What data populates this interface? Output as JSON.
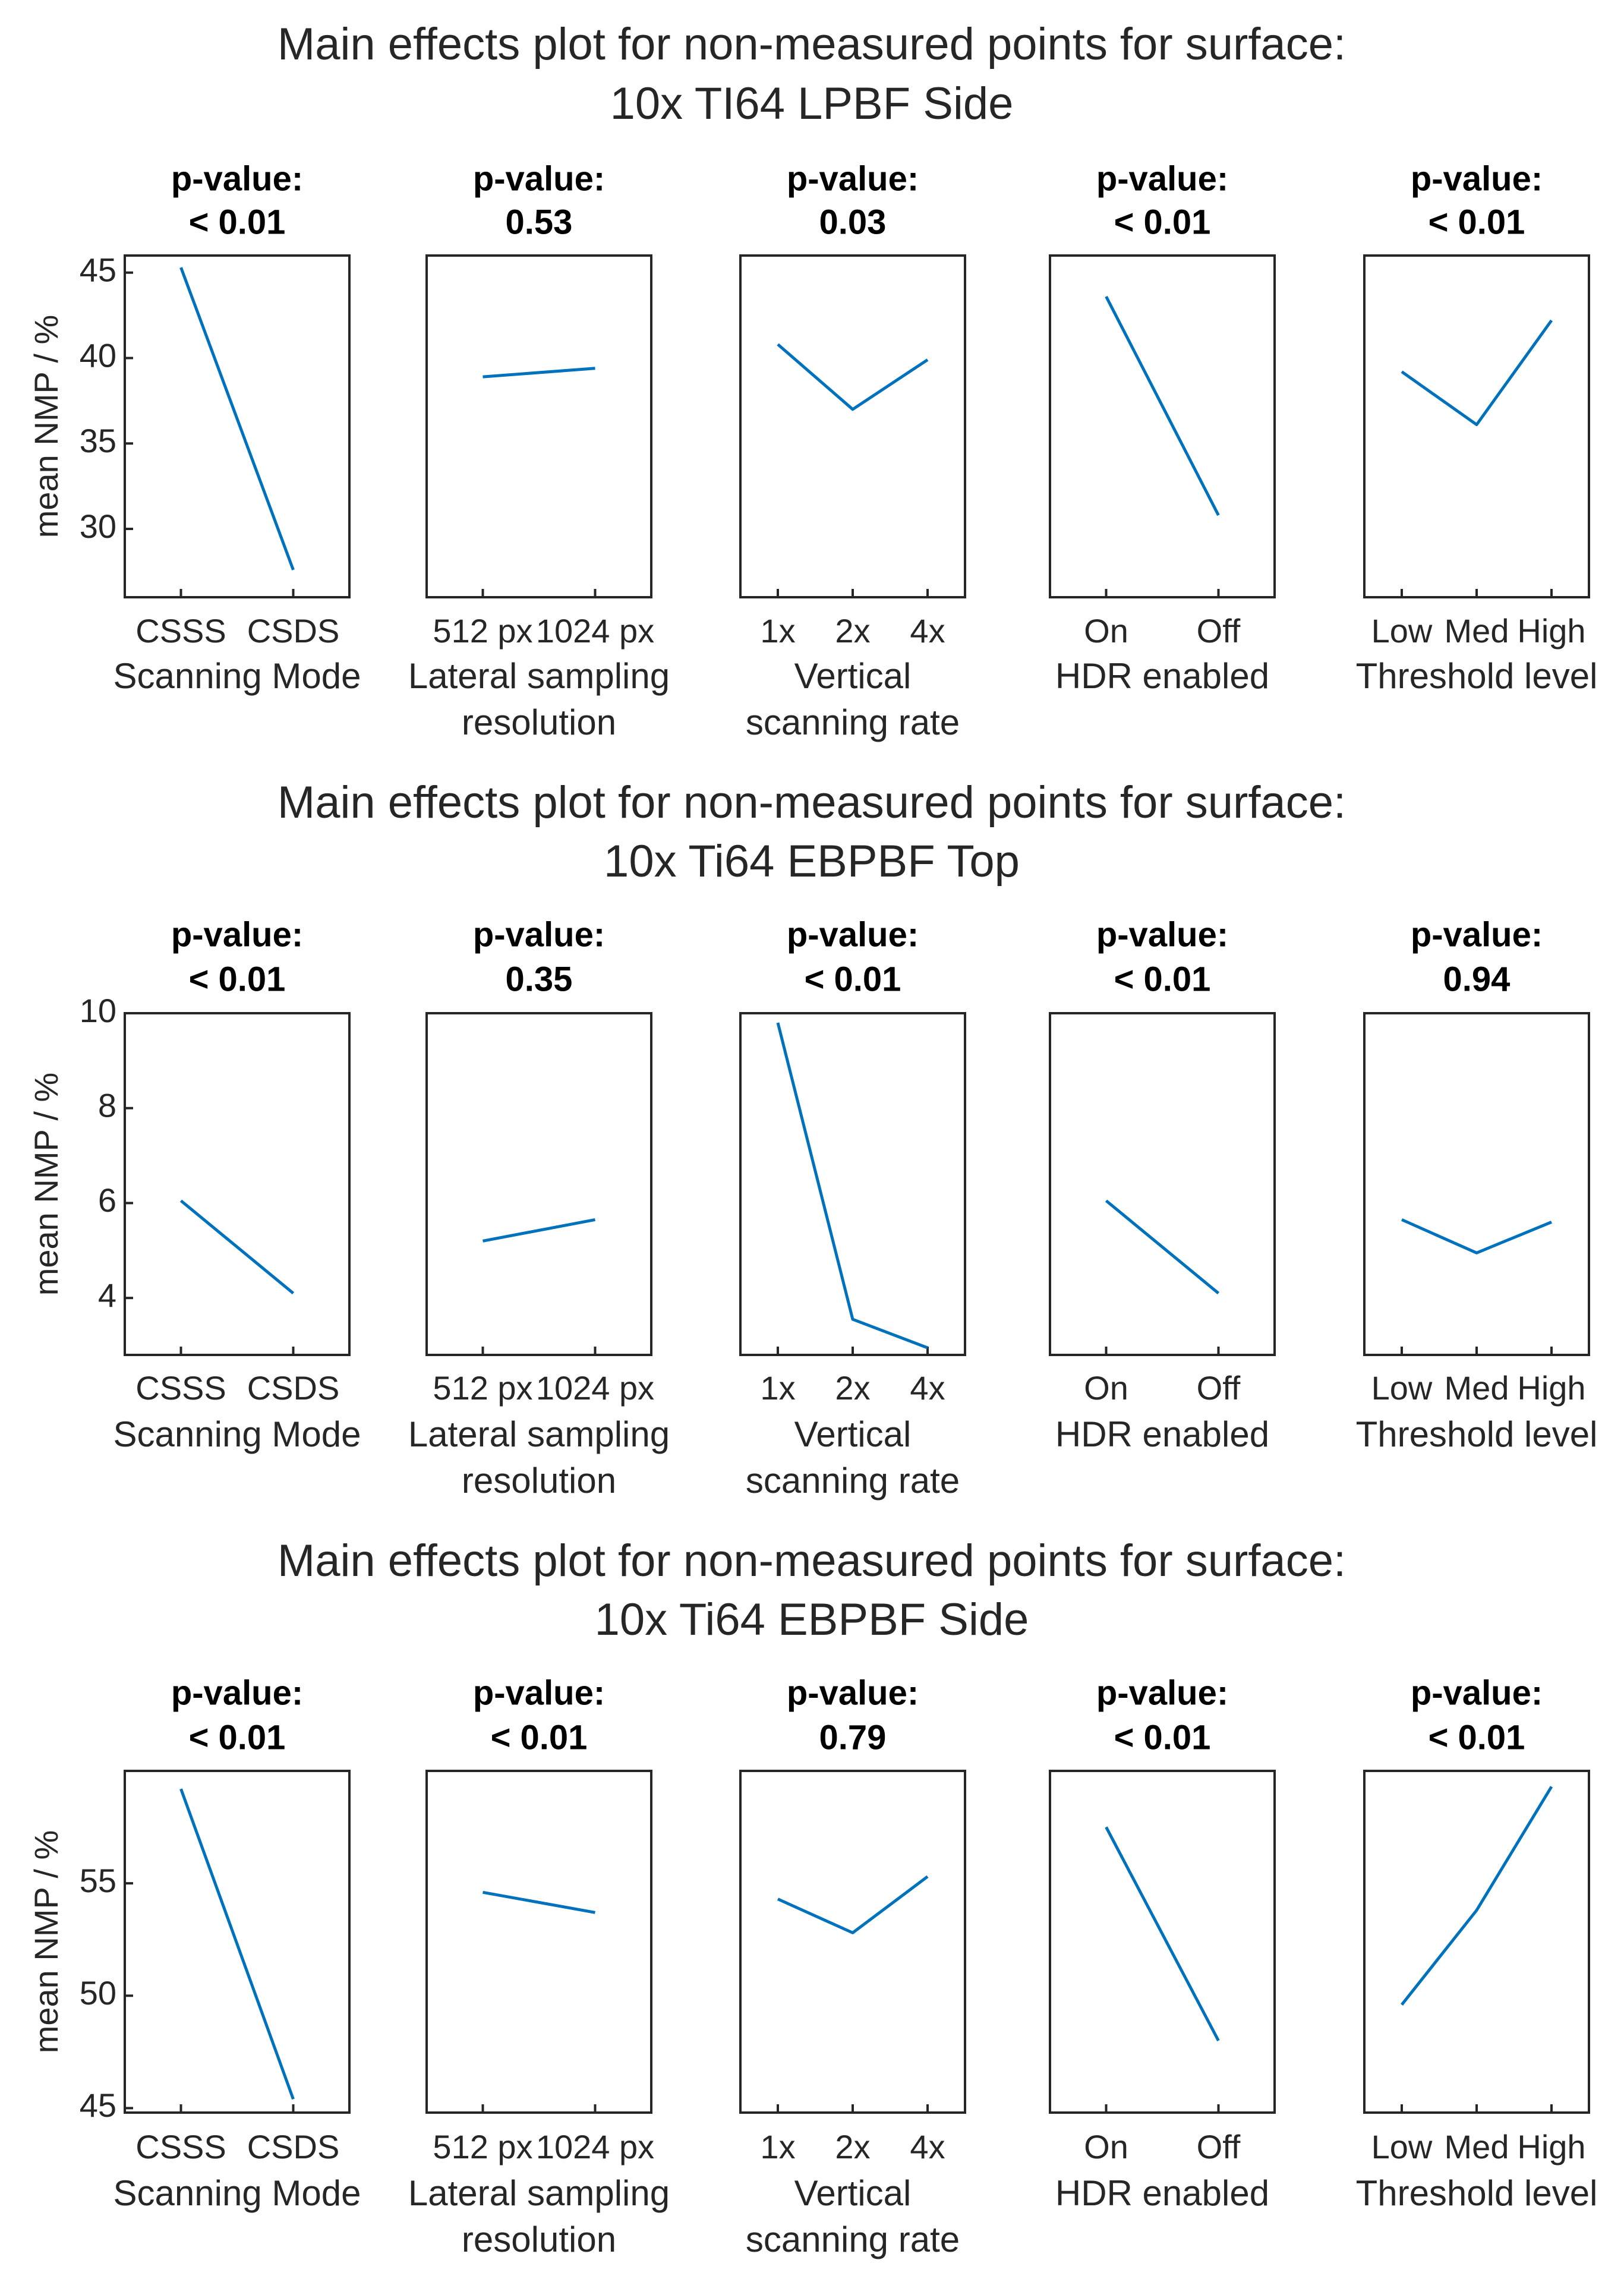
{
  "chart_data": [
    {
      "type": "line",
      "title": [
        "Main effects plot for non-measured points for surface:",
        "10x TI64 LPBF Side"
      ],
      "ylabel": "mean NMP / %",
      "ylim": [
        26,
        46
      ],
      "yticks": [
        30,
        35,
        40,
        45
      ],
      "panels": [
        {
          "p_label": "p-value:",
          "p_value": "< 0.01",
          "xlabel": [
            "Scanning Mode"
          ],
          "categories": [
            "CSSS",
            "CSDS"
          ],
          "values": [
            45.3,
            27.6
          ]
        },
        {
          "p_label": "p-value:",
          "p_value": "0.53",
          "xlabel": [
            "Lateral sampling",
            "resolution"
          ],
          "categories": [
            "512 px",
            "1024 px"
          ],
          "values": [
            38.9,
            39.4
          ]
        },
        {
          "p_label": "p-value:",
          "p_value": "0.03",
          "xlabel": [
            "Vertical",
            "scanning rate"
          ],
          "categories": [
            "1x",
            "2x",
            "4x"
          ],
          "values": [
            40.8,
            37.0,
            39.9
          ]
        },
        {
          "p_label": "p-value:",
          "p_value": "< 0.01",
          "xlabel": [
            "HDR enabled"
          ],
          "categories": [
            "On",
            "Off"
          ],
          "values": [
            43.6,
            30.8
          ]
        },
        {
          "p_label": "p-value:",
          "p_value": "< 0.01",
          "xlabel": [
            "Threshold level"
          ],
          "categories": [
            "Low",
            "Med",
            "High"
          ],
          "values": [
            39.2,
            36.1,
            42.2
          ]
        }
      ]
    },
    {
      "type": "line",
      "title": [
        "Main effects plot for non-measured points for surface:",
        "10x Ti64 EBPBF Top"
      ],
      "ylabel": "mean NMP / %",
      "ylim": [
        2.8,
        10
      ],
      "yticks": [
        4,
        6,
        8,
        10
      ],
      "panels": [
        {
          "p_label": "p-value:",
          "p_value": "< 0.01",
          "xlabel": [
            "Scanning Mode"
          ],
          "categories": [
            "CSSS",
            "CSDS"
          ],
          "values": [
            6.05,
            4.1
          ]
        },
        {
          "p_label": "p-value:",
          "p_value": "0.35",
          "xlabel": [
            "Lateral sampling",
            "resolution"
          ],
          "categories": [
            "512 px",
            "1024 px"
          ],
          "values": [
            5.2,
            5.65
          ]
        },
        {
          "p_label": "p-value:",
          "p_value": "< 0.01",
          "xlabel": [
            "Vertical",
            "scanning rate"
          ],
          "categories": [
            "1x",
            "2x",
            "4x"
          ],
          "values": [
            9.8,
            3.55,
            2.95
          ]
        },
        {
          "p_label": "p-value:",
          "p_value": "< 0.01",
          "xlabel": [
            "HDR enabled"
          ],
          "categories": [
            "On",
            "Off"
          ],
          "values": [
            6.05,
            4.1
          ]
        },
        {
          "p_label": "p-value:",
          "p_value": "0.94",
          "xlabel": [
            "Threshold level"
          ],
          "categories": [
            "Low",
            "Med",
            "High"
          ],
          "values": [
            5.65,
            4.95,
            5.6
          ]
        }
      ]
    },
    {
      "type": "line",
      "title": [
        "Main effects plot for non-measured points for surface:",
        "10x Ti64 EBPBF Side"
      ],
      "ylabel": "mean NMP / %",
      "ylim": [
        44.8,
        60
      ],
      "yticks": [
        45,
        50,
        55
      ],
      "panels": [
        {
          "p_label": "p-value:",
          "p_value": "< 0.01",
          "xlabel": [
            "Scanning Mode"
          ],
          "categories": [
            "CSSS",
            "CSDS"
          ],
          "values": [
            59.2,
            45.4
          ]
        },
        {
          "p_label": "p-value:",
          "p_value": "< 0.01",
          "xlabel": [
            "Lateral sampling",
            "resolution"
          ],
          "categories": [
            "512 px",
            "1024 px"
          ],
          "values": [
            54.6,
            53.7
          ]
        },
        {
          "p_label": "p-value:",
          "p_value": "0.79",
          "xlabel": [
            "Vertical",
            "scanning rate"
          ],
          "categories": [
            "1x",
            "2x",
            "4x"
          ],
          "values": [
            54.3,
            52.8,
            55.3
          ]
        },
        {
          "p_label": "p-value:",
          "p_value": "< 0.01",
          "xlabel": [
            "HDR enabled"
          ],
          "categories": [
            "On",
            "Off"
          ],
          "values": [
            57.5,
            48.0
          ]
        },
        {
          "p_label": "p-value:",
          "p_value": "< 0.01",
          "xlabel": [
            "Threshold level"
          ],
          "categories": [
            "Low",
            "Med",
            "High"
          ],
          "values": [
            49.6,
            53.8,
            59.3
          ]
        }
      ]
    }
  ]
}
